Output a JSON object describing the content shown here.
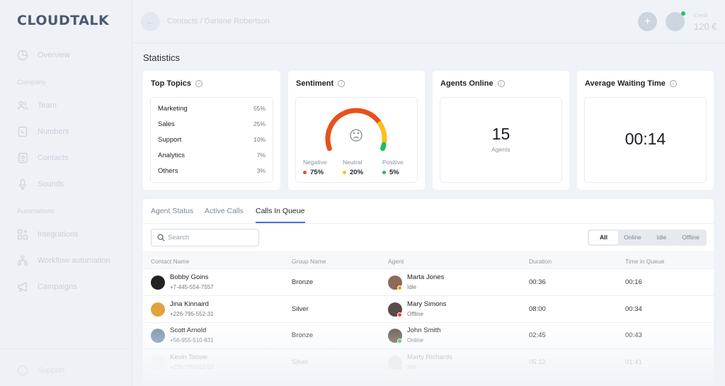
{
  "brand": {
    "logo": "CLOUDTALK"
  },
  "sidebar": {
    "overview": "Overview",
    "section_company": "Company",
    "company_items": [
      {
        "label": "Team",
        "icon": "team-icon"
      },
      {
        "label": "Numbers",
        "icon": "phone-icon"
      },
      {
        "label": "Contacts",
        "icon": "contacts-icon"
      },
      {
        "label": "Sounds",
        "icon": "microphone-icon"
      }
    ],
    "section_automations": "Automations",
    "automation_items": [
      {
        "label": "Integrations",
        "icon": "integrations-icon"
      },
      {
        "label": "Workflow automation",
        "icon": "workflow-icon"
      },
      {
        "label": "Campaigns",
        "icon": "megaphone-icon"
      }
    ],
    "support": "Support"
  },
  "header": {
    "breadcrumb": "Contacts / Darlene Robertson",
    "credit_label": "Credit",
    "credit_value": "120 €"
  },
  "statistics": {
    "title": "Statistics",
    "top_topics": {
      "title": "Top Topics",
      "items": [
        {
          "label": "Marketing",
          "pct": "55%"
        },
        {
          "label": "Sales",
          "pct": "25%"
        },
        {
          "label": "Support",
          "pct": "10%"
        },
        {
          "label": "Analytics",
          "pct": "7%"
        },
        {
          "label": "Others",
          "pct": "3%"
        }
      ]
    },
    "sentiment": {
      "title": "Sentiment",
      "items": [
        {
          "label": "Negative",
          "value": "75%",
          "pct": 75,
          "color": "#e8501c"
        },
        {
          "label": "Neutral",
          "value": "20%",
          "pct": 20,
          "color": "#fbbf24"
        },
        {
          "label": "Positive",
          "value": "5%",
          "pct": 5,
          "color": "#16c060"
        }
      ]
    },
    "agents_online": {
      "title": "Agents Online",
      "value": "15",
      "unit": "Agents"
    },
    "avg_wait": {
      "title": "Average Waiting Time",
      "value": "00:14"
    }
  },
  "panel": {
    "tabs": [
      "Agent Status",
      "Active Calls",
      "Calls In Queue"
    ],
    "active_tab": "Calls In Queue",
    "search_placeholder": "Search",
    "filters": [
      "All",
      "Online",
      "Idle",
      "Offline"
    ],
    "active_filter": "All",
    "columns": [
      "Contact Name",
      "Group Name",
      "Agent",
      "Duration",
      "Time in Queue"
    ],
    "rows": [
      {
        "name": "Bobby Goins",
        "phone": "+7-445-554-7557",
        "group": "Bronze",
        "agent": "Marta Jones",
        "status": "Idle",
        "status_color": "#f59e0b",
        "duration": "00:36",
        "queue": "00:16"
      },
      {
        "name": "Jina Kinnaird",
        "phone": "+226-795-552-31",
        "group": "Silver",
        "agent": "Mary Simons",
        "status": "Offline",
        "status_color": "#ef4444",
        "duration": "08:00",
        "queue": "00:34"
      },
      {
        "name": "Scott Arnold",
        "phone": "+56-955-510-831",
        "group": "Bronze",
        "agent": "John Smith",
        "status": "Online",
        "status_color": "#22c55e",
        "duration": "02:45",
        "queue": "00:43"
      },
      {
        "name": "Kevin Tsosie",
        "phone": "+226-775-552-53",
        "group": "Silver",
        "agent": "Marty Richards",
        "status": "Idle",
        "status_color": "#f59e0b",
        "duration": "05:12",
        "queue": "01:41"
      }
    ]
  }
}
